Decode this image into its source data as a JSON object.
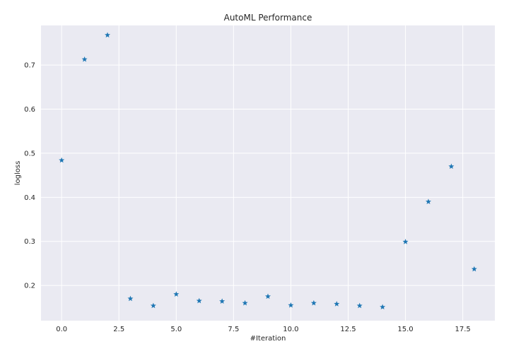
{
  "chart_data": {
    "type": "scatter",
    "title": "AutoML Performance",
    "xlabel": "#Iteration",
    "ylabel": "logloss",
    "xlim": [
      -0.9,
      18.9
    ],
    "ylim": [
      0.12,
      0.79
    ],
    "xticks": [
      0.0,
      2.5,
      5.0,
      7.5,
      10.0,
      12.5,
      15.0,
      17.5
    ],
    "xtick_labels": [
      "0.0",
      "2.5",
      "5.0",
      "7.5",
      "10.0",
      "12.5",
      "15.0",
      "17.5"
    ],
    "yticks": [
      0.2,
      0.3,
      0.4,
      0.5,
      0.6,
      0.7
    ],
    "ytick_labels": [
      "0.2",
      "0.3",
      "0.4",
      "0.5",
      "0.6",
      "0.7"
    ],
    "grid": true,
    "marker": "star",
    "color": "#1f77b4",
    "background": "#eaeaf2",
    "x": [
      0,
      1,
      2,
      3,
      4,
      5,
      6,
      7,
      8,
      9,
      10,
      11,
      12,
      13,
      14,
      15,
      16,
      17,
      18
    ],
    "y": [
      0.484,
      0.713,
      0.768,
      0.17,
      0.154,
      0.18,
      0.165,
      0.164,
      0.16,
      0.175,
      0.155,
      0.16,
      0.158,
      0.154,
      0.151,
      0.299,
      0.39,
      0.47,
      0.237
    ]
  }
}
